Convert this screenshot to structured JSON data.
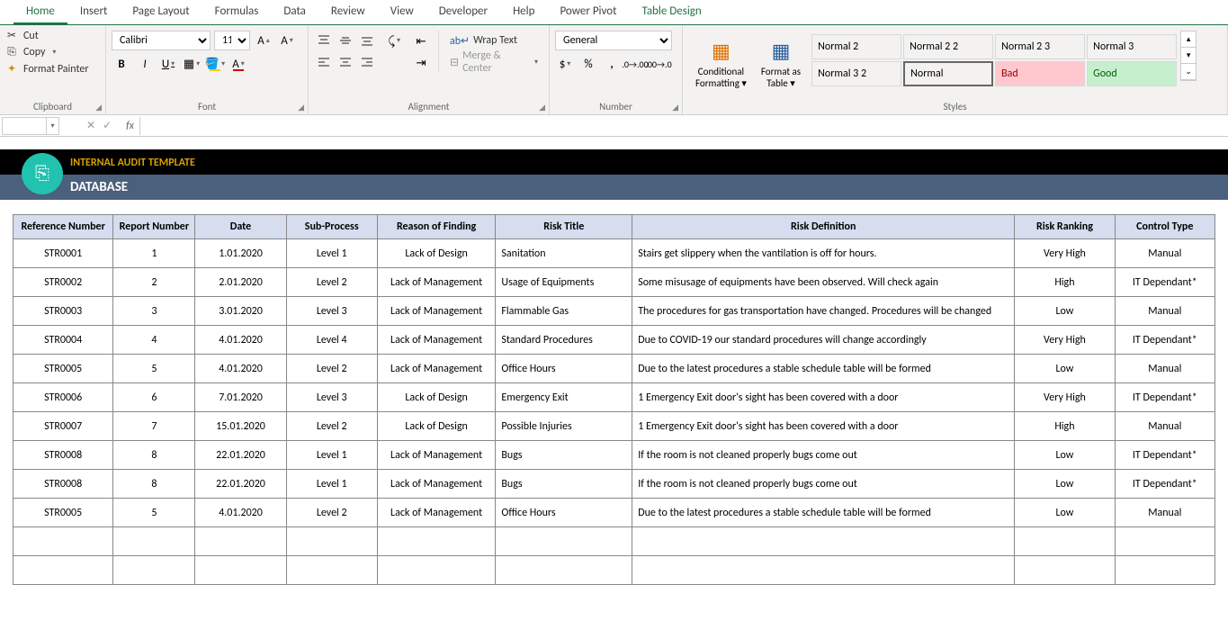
{
  "tabs": [
    "Home",
    "Insert",
    "Page Layout",
    "Formulas",
    "Data",
    "Review",
    "View",
    "Developer",
    "Help",
    "Power Pivot",
    "Table Design"
  ],
  "active_tab": "Home",
  "clipboard": {
    "cut": "Cut",
    "copy": "Copy",
    "paint": "Format Painter",
    "label": "Clipboard"
  },
  "font": {
    "name": "Calibri",
    "size": "11",
    "label": "Font"
  },
  "alignment": {
    "wrap": "Wrap Text",
    "merge": "Merge & Center",
    "label": "Alignment"
  },
  "number": {
    "format": "General",
    "label": "Number"
  },
  "cond_title": "Conditional Formatting",
  "fmt_table": "Format as Table",
  "styles_label": "Styles",
  "style_cells": [
    "Normal 2",
    "Normal 2 2",
    "Normal 2 3",
    "Normal 3",
    "Normal 3 2",
    "Normal",
    "Bad",
    "Good"
  ],
  "title_bar": {
    "subtitle": "INTERNAL AUDIT TEMPLATE",
    "title": "DATABASE"
  },
  "columns": [
    "Reference Number",
    "Report Number",
    "Date",
    "Sub-Process",
    "Reason of Finding",
    "Risk Title",
    "Risk Definition",
    "Risk Ranking",
    "Control Type"
  ],
  "rows": [
    {
      "ref": "STR0001",
      "rep": "1",
      "date": "1.01.2020",
      "sub": "Level 1",
      "reason": "Lack of Design",
      "title": "Sanitation",
      "def": "Stairs get slippery when the vantilation is off for hours.",
      "rank": "Very High",
      "ctrl": "Manual"
    },
    {
      "ref": "STR0002",
      "rep": "2",
      "date": "2.01.2020",
      "sub": "Level 2",
      "reason": "Lack of Management",
      "title": "Usage of Equipments",
      "def": "Some misusage of equipments have been observed. Will check again",
      "rank": "High",
      "ctrl": "IT Dependant*"
    },
    {
      "ref": "STR0003",
      "rep": "3",
      "date": "3.01.2020",
      "sub": "Level 3",
      "reason": "Lack of Management",
      "title": "Flammable Gas",
      "def": "The procedures for gas transportation have changed. Procedures will be changed",
      "rank": "Low",
      "ctrl": "Manual"
    },
    {
      "ref": "STR0004",
      "rep": "4",
      "date": "4.01.2020",
      "sub": "Level 4",
      "reason": "Lack of Management",
      "title": "Standard Procedures",
      "def": "Due to COVID-19 our standard procedures will change accordingly",
      "rank": "Very High",
      "ctrl": "IT Dependant*"
    },
    {
      "ref": "STR0005",
      "rep": "5",
      "date": "4.01.2020",
      "sub": "Level 2",
      "reason": "Lack of Management",
      "title": "Office Hours",
      "def": "Due to the latest procedures a stable schedule table will be formed",
      "rank": "Low",
      "ctrl": "Manual"
    },
    {
      "ref": "STR0006",
      "rep": "6",
      "date": "7.01.2020",
      "sub": "Level 3",
      "reason": "Lack of Design",
      "title": "Emergency Exit",
      "def": "1 Emergency Exit door's sight has been covered with a door",
      "rank": "Very High",
      "ctrl": "IT Dependant*"
    },
    {
      "ref": "STR0007",
      "rep": "7",
      "date": "15.01.2020",
      "sub": "Level 2",
      "reason": "Lack of Design",
      "title": "Possible Injuries",
      "def": "1 Emergency Exit door's sight has been covered with a door",
      "rank": "High",
      "ctrl": "Manual"
    },
    {
      "ref": "STR0008",
      "rep": "8",
      "date": "22.01.2020",
      "sub": "Level 1",
      "reason": "Lack of Management",
      "title": "Bugs",
      "def": "If the room is not cleaned properly bugs come out",
      "rank": "Low",
      "ctrl": "IT Dependant*"
    },
    {
      "ref": "STR0008",
      "rep": "8",
      "date": "22.01.2020",
      "sub": "Level 1",
      "reason": "Lack of Management",
      "title": "Bugs",
      "def": "If the room is not cleaned properly bugs come out",
      "rank": "Low",
      "ctrl": "IT Dependant*"
    },
    {
      "ref": "STR0005",
      "rep": "5",
      "date": "4.01.2020",
      "sub": "Level 2",
      "reason": "Lack of Management",
      "title": "Office Hours",
      "def": "Due to the latest procedures a stable schedule table will be formed",
      "rank": "Low",
      "ctrl": "Manual"
    },
    {
      "ref": "",
      "rep": "",
      "date": "",
      "sub": "",
      "reason": "",
      "title": "",
      "def": "",
      "rank": "",
      "ctrl": ""
    },
    {
      "ref": "",
      "rep": "",
      "date": "",
      "sub": "",
      "reason": "",
      "title": "",
      "def": "",
      "rank": "",
      "ctrl": ""
    }
  ]
}
